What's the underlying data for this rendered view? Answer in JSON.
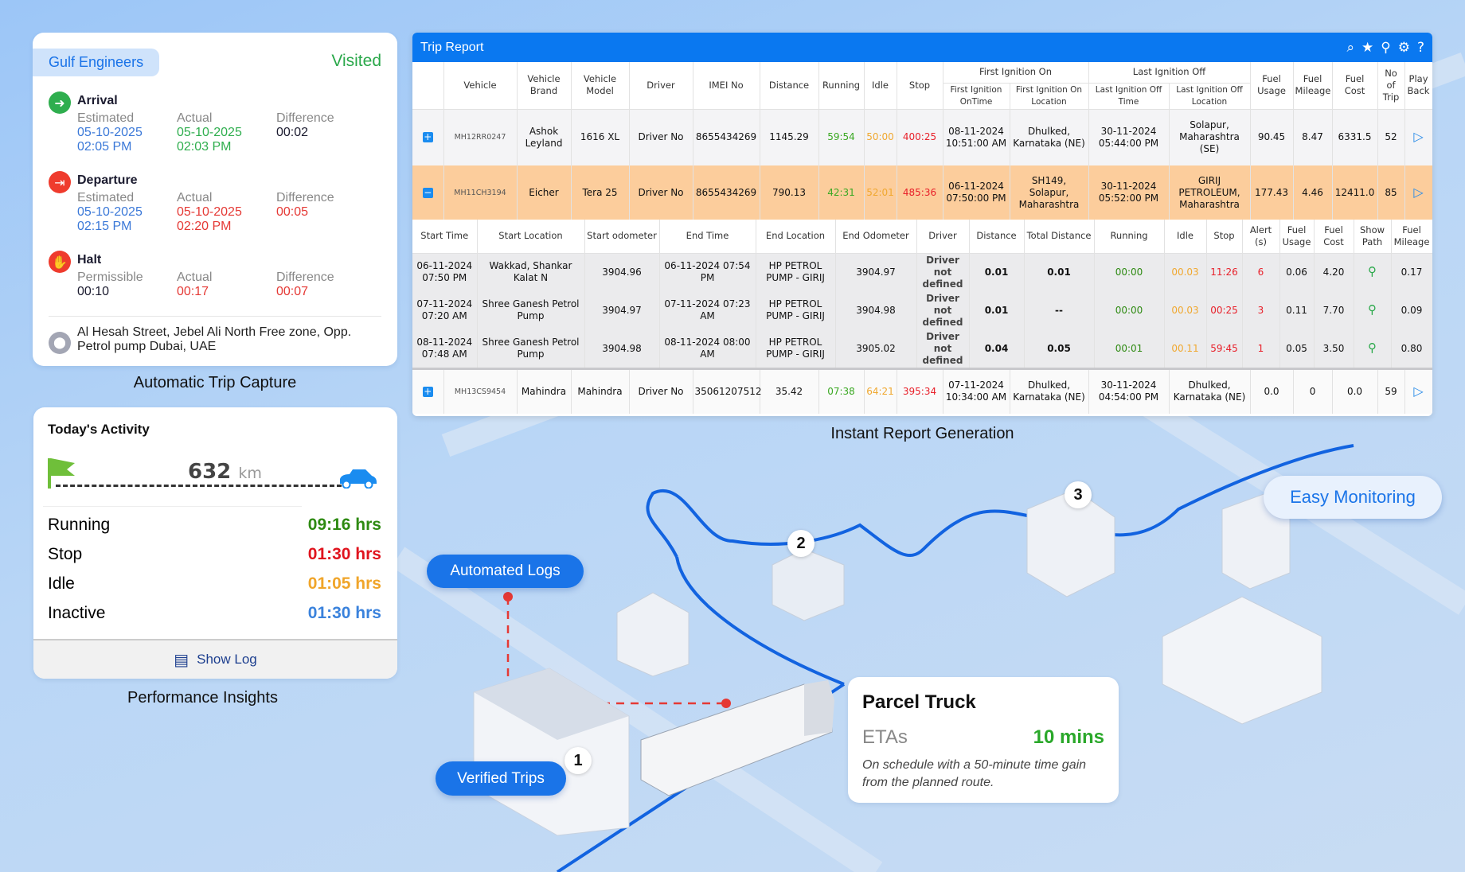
{
  "trip_capture": {
    "company": "Gulf Engineers",
    "status": "Visited",
    "arrival": {
      "title": "Arrival",
      "labels": [
        "Estimated",
        "Actual",
        "Difference"
      ],
      "estimated": [
        "05-10-2025",
        "02:05 PM"
      ],
      "actual": [
        "05-10-2025",
        "02:03 PM"
      ],
      "difference": "00:02"
    },
    "departure": {
      "title": "Departure",
      "labels": [
        "Estimated",
        "Actual",
        "Difference"
      ],
      "estimated": [
        "05-10-2025",
        "02:15 PM"
      ],
      "actual": [
        "05-10-2025",
        "02:20 PM"
      ],
      "difference": "00:05"
    },
    "halt": {
      "title": "Halt",
      "labels": [
        "Permissible",
        "Actual",
        "Difference"
      ],
      "permissible": "00:10",
      "actual": "00:17",
      "difference": "00:07"
    },
    "address": "Al Hesah Street, Jebel Ali North Free zone,  Opp. Petrol pump Dubai, UAE",
    "caption": "Automatic Trip Capture"
  },
  "activity": {
    "title": "Today's Activity",
    "distance": "632",
    "unit": "km",
    "rows": [
      {
        "label": "Running",
        "value": "09:16 hrs",
        "color": "#2e8a12"
      },
      {
        "label": "Stop",
        "value": "01:30 hrs",
        "color": "#e0141e"
      },
      {
        "label": "Idle",
        "value": "01:05 hrs",
        "color": "#f0a52a"
      },
      {
        "label": "Inactive",
        "value": "01:30 hrs",
        "color": "#3a82dc"
      }
    ],
    "show_log": "Show Log",
    "caption": "Performance Insights"
  },
  "trip_report": {
    "title": "Trip Report",
    "toolbar_icons": [
      "search-icon",
      "star-icon",
      "filter-icon",
      "gear-icon",
      "help-icon"
    ],
    "group_headers": [
      "First Ignition On",
      "Last Ignition Off"
    ],
    "columns": [
      "",
      "Vehicle",
      "Vehicle Brand",
      "Vehicle Model",
      "Driver",
      "IMEI No",
      "Distance",
      "Running",
      "Idle",
      "Stop",
      "First Ignition OnTime",
      "First Ignition On Location",
      "Last Ignition Off Time",
      "Last Ignition Off Location",
      "Fuel Usage",
      "Fuel Mileage",
      "Fuel Cost",
      "No of Trip",
      "Play Back"
    ],
    "rows": [
      {
        "expanded": false,
        "cells": [
          "MH12RR0247",
          "Ashok Leyland",
          "1616 XL",
          "Driver No",
          "8655434269",
          "1145.29",
          "59:54",
          "50:00",
          "400:25",
          "08-11-2024 10:51:00 AM",
          "Dhulked, Karnataka (NE)",
          "30-11-2024 05:44:00 PM",
          "Solapur, Maharashtra (SE)",
          "90.45",
          "8.47",
          "6331.5",
          "52"
        ]
      },
      {
        "expanded": true,
        "cells": [
          "MH11CH3194",
          "Eicher",
          "Tera 25",
          "Driver No",
          "8655434269",
          "790.13",
          "42:31",
          "52:01",
          "485:36",
          "06-11-2024 07:50:00 PM",
          "SH149, Solapur, Maharashtra",
          "30-11-2024 05:52:00 PM",
          "GIRIJ PETROLEUM, Maharashtra",
          "177.43",
          "4.46",
          "12411.0",
          "85"
        ]
      },
      {
        "expanded": false,
        "cells": [
          "MH13CS9454",
          "Mahindra",
          "Mahindra",
          "Driver No",
          "35061207512",
          "35.42",
          "07:38",
          "64:21",
          "395:34",
          "07-11-2024 10:34:00 AM",
          "Dhulked, Karnataka (NE)",
          "30-11-2024 04:54:00 PM",
          "Dhulked, Karnataka (NE)",
          "0.0",
          "0",
          "0.0",
          "59"
        ]
      }
    ],
    "sub_columns": [
      "Start Time",
      "Start Location",
      "Start odometer",
      "End Time",
      "End Location",
      "End Odometer",
      "Driver",
      "Distance",
      "Total Distance",
      "Running",
      "Idle",
      "Stop",
      "Alert (s)",
      "Fuel Usage",
      "Fuel Cost",
      "Show Path",
      "Fuel Mileage"
    ],
    "sub_rows": [
      [
        "06-11-2024 07:50 PM",
        "Wakkad, Shankar Kalat N",
        "3904.96",
        "06-11-2024 07:54 PM",
        "HP PETROL PUMP - GIRIJ",
        "3904.97",
        "Driver not defined",
        "0.01",
        "0.01",
        "00:00",
        "00.03",
        "11:26",
        "6",
        "0.06",
        "4.20",
        "",
        "0.17"
      ],
      [
        "07-11-2024 07:20 AM",
        "Shree Ganesh Petrol Pump",
        "3904.97",
        "07-11-2024 07:23 AM",
        "HP PETROL PUMP - GIRIJ",
        "3904.98",
        "Driver not defined",
        "0.01",
        "--",
        "00:00",
        "00.03",
        "00:25",
        "3",
        "0.11",
        "7.70",
        "",
        "0.09"
      ],
      [
        "08-11-2024 07:48 AM",
        "Shree Ganesh Petrol Pump",
        "3904.98",
        "08-11-2024 08:00 AM",
        "HP PETROL PUMP - GIRIJ",
        "3905.02",
        "Driver not defined",
        "0.04",
        "0.05",
        "00:01",
        "00.11",
        "59:45",
        "1",
        "0.05",
        "3.50",
        "",
        "0.80"
      ]
    ],
    "colors": {
      "running": "#3aa822",
      "idle": "#f0a830",
      "stop": "#e8202a",
      "header": "#0a78f0",
      "expanded_row": "#fccd9c"
    },
    "caption": "Instant Report Generation"
  },
  "map": {
    "automated_logs": "Automated Logs",
    "verified_trips": "Verified Trips",
    "easy_monitoring": "Easy Monitoring",
    "markers": [
      "1",
      "2",
      "3"
    ],
    "eta_card": {
      "title": "Parcel Truck",
      "eta_label": "ETAs",
      "eta_value": "10 mins",
      "note": "On schedule with a 50-minute time gain from the planned route."
    }
  }
}
